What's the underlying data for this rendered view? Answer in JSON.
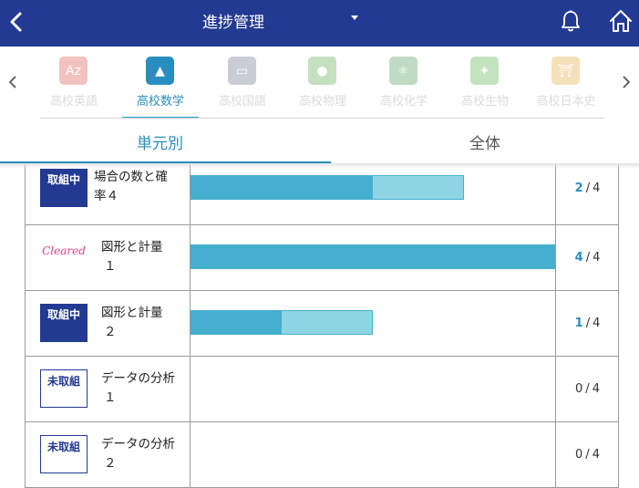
{
  "header": {
    "title": "進捗管理",
    "back_icon": "chevron-left-icon",
    "bell_icon": "bell-icon",
    "home_icon": "home-icon"
  },
  "subjects": [
    {
      "label": "高校英語",
      "color": "#d9524b",
      "glyph": "Az",
      "active": false
    },
    {
      "label": "高校数学",
      "color": "#2a8dbf",
      "glyph": "▲",
      "active": true
    },
    {
      "label": "高校国語",
      "color": "#6b6f8c",
      "glyph": "▭",
      "active": false
    },
    {
      "label": "高校物理",
      "color": "#5aa94a",
      "glyph": "●",
      "active": false
    },
    {
      "label": "高校化学",
      "color": "#4a9a5a",
      "glyph": "⚛",
      "active": false
    },
    {
      "label": "高校生物",
      "color": "#55b24a",
      "glyph": "✦",
      "active": false
    },
    {
      "label": "高校日本史",
      "color": "#e0a93a",
      "glyph": "⛩",
      "active": false
    }
  ],
  "view_tabs": {
    "unit": "単元別",
    "all": "全体"
  },
  "units": [
    {
      "status": "取組中",
      "status_type": "prog",
      "name_line1": "場合の数と確",
      "name_line2": "率４",
      "done": "2",
      "total": "4",
      "progress": 0.5,
      "attempted": 0.75
    },
    {
      "status": "Cleared",
      "status_type": "cleared",
      "name_line1": "図形と計量",
      "name_line2": "１",
      "done": "4",
      "total": "4",
      "progress": 1.0,
      "attempted": 1.0
    },
    {
      "status": "取組中",
      "status_type": "prog",
      "name_line1": "図形と計量",
      "name_line2": "２",
      "done": "1",
      "total": "4",
      "progress": 0.25,
      "attempted": 0.5
    },
    {
      "status": "未取組",
      "status_type": "none",
      "name_line1": "データの分析",
      "name_line2": "１",
      "done": "0",
      "total": "4",
      "progress": 0,
      "attempted": 0
    },
    {
      "status": "未取組",
      "status_type": "none",
      "name_line1": "データの分析",
      "name_line2": "２",
      "done": "0",
      "total": "4",
      "progress": 0,
      "attempted": 0
    }
  ]
}
